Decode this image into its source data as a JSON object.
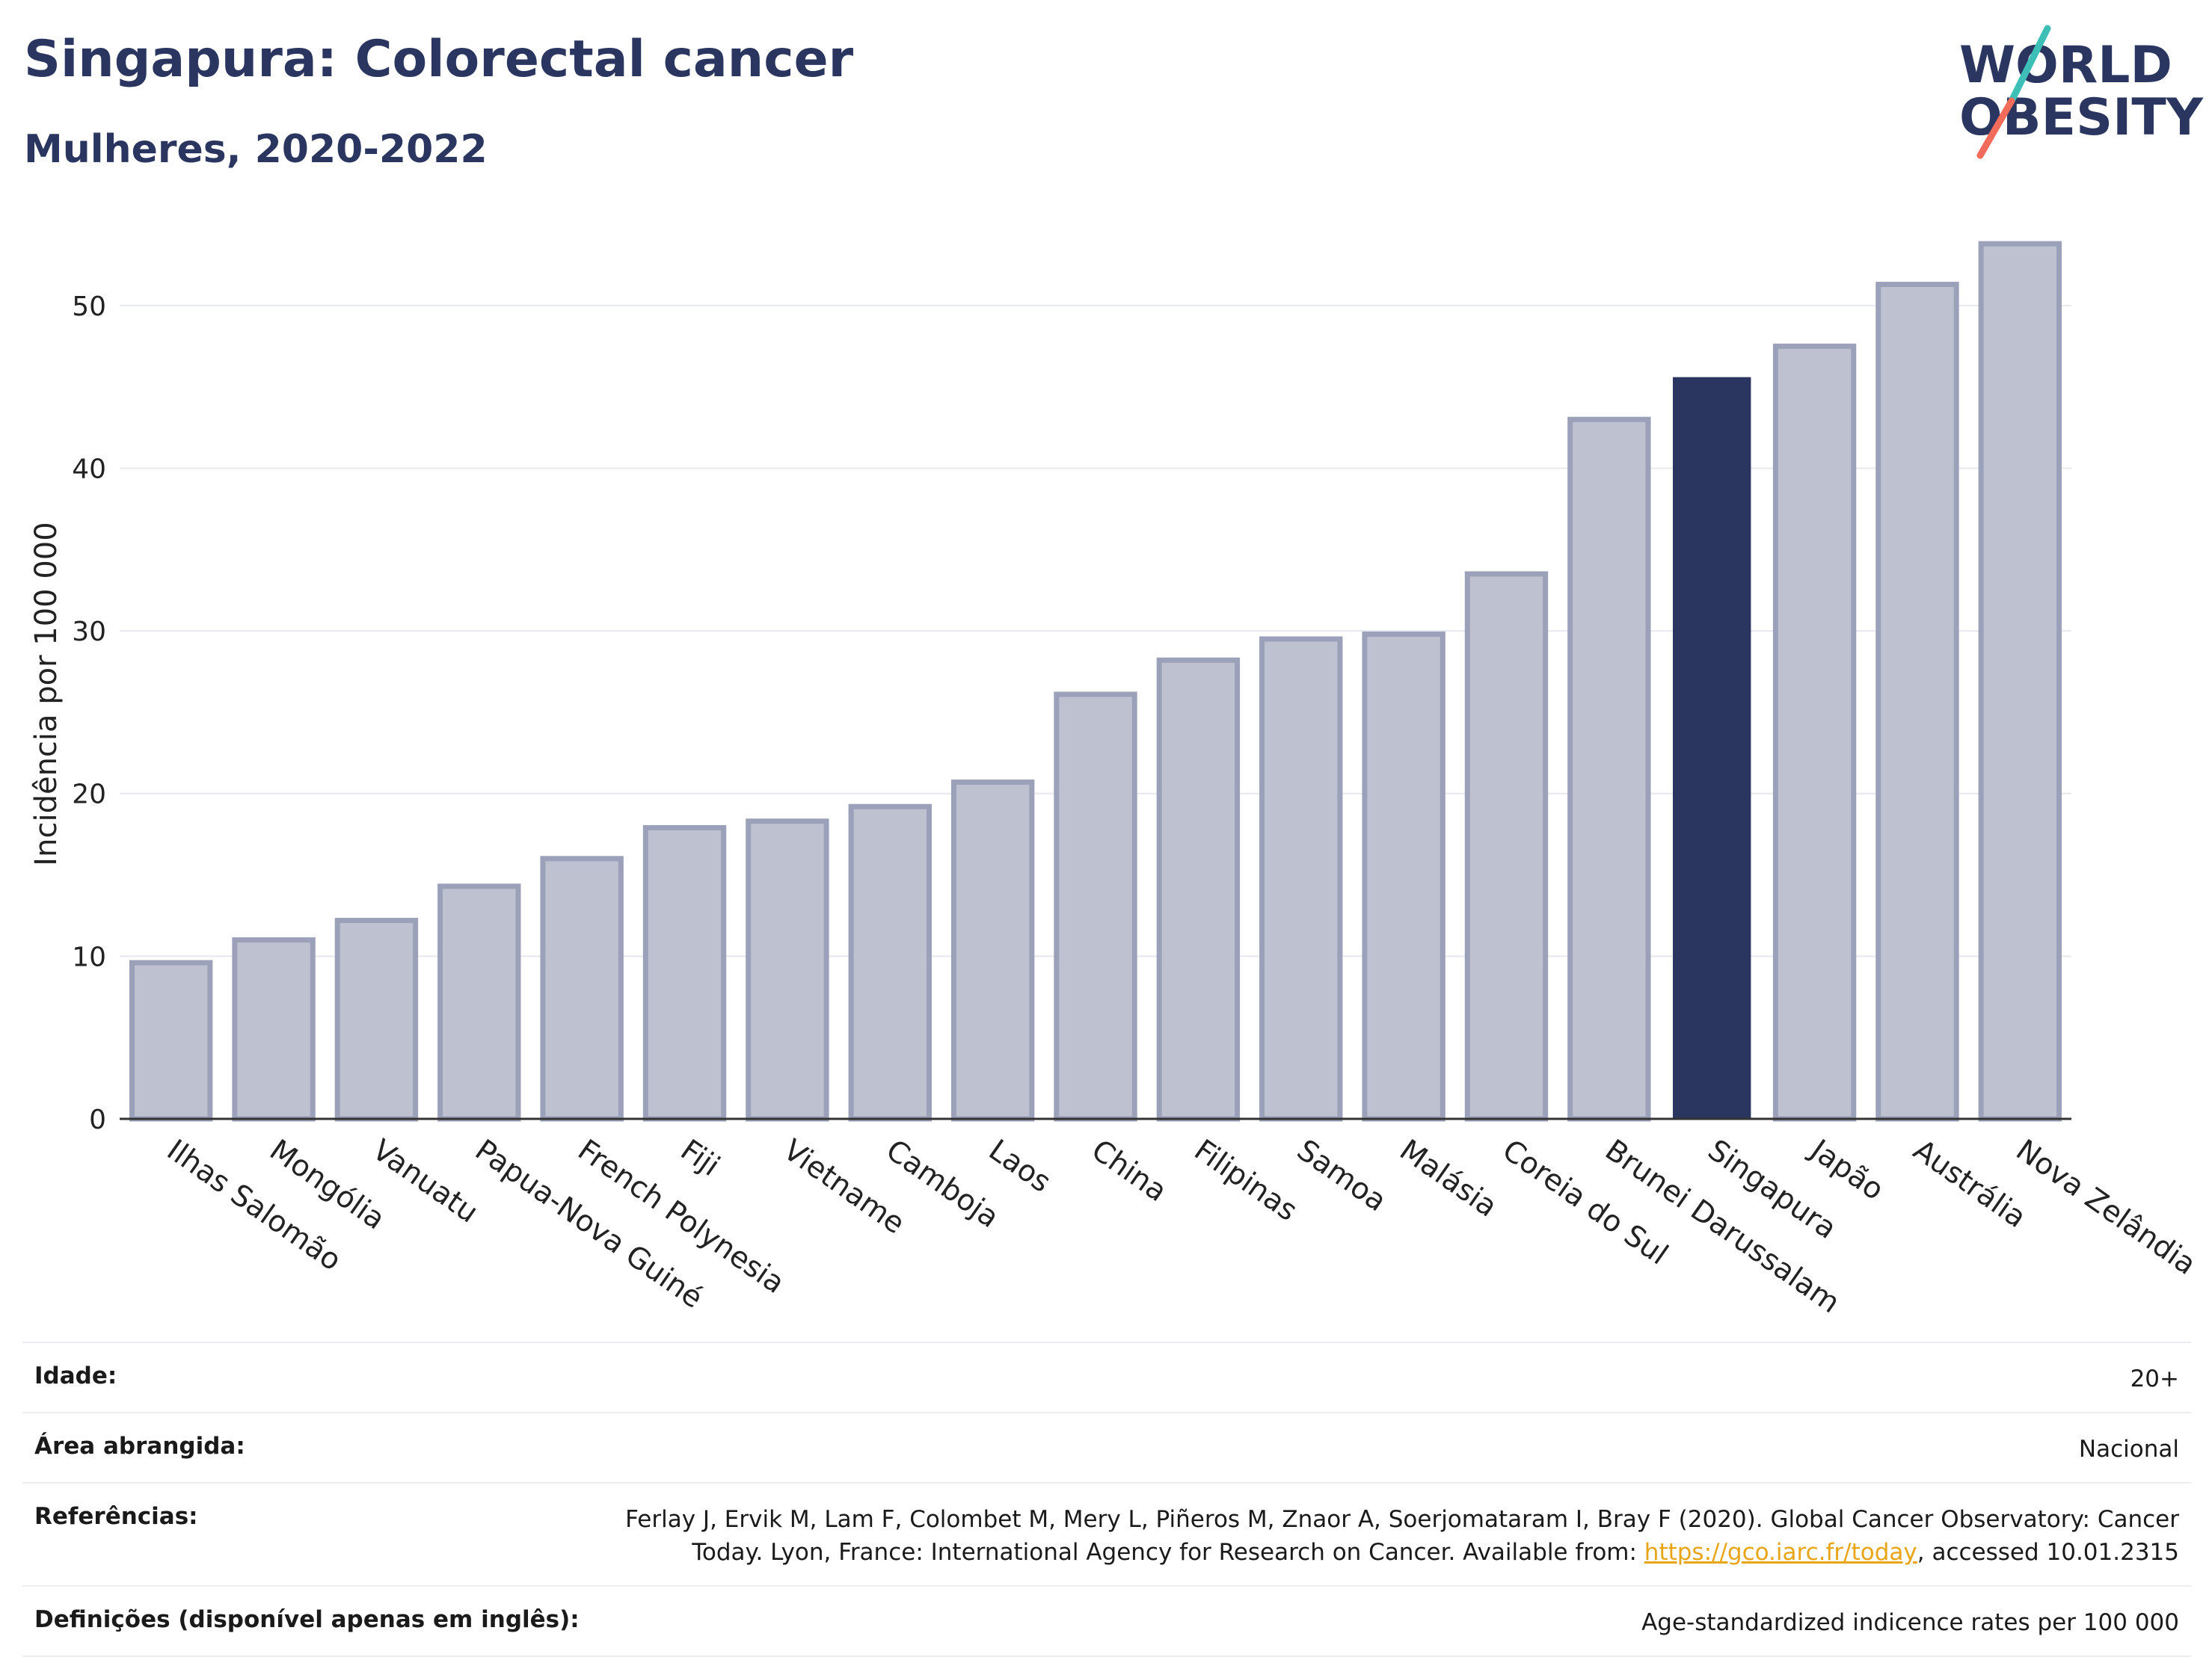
{
  "header": {
    "title": "Singapura: Colorectal cancer",
    "subtitle": "Mulheres, 2020-2022"
  },
  "logo": {
    "line1": "WORLD",
    "line2": "OBESITY",
    "slash_colors": [
      "#3dbfb8",
      "#f26b5b"
    ]
  },
  "chart_data": {
    "type": "bar",
    "categories": [
      "Ilhas Salomão",
      "Mongólia",
      "Vanuatu",
      "Papua-Nova Guiné",
      "French Polynesia",
      "Fiji",
      "Vietname",
      "Camboja",
      "Laos",
      "China",
      "Filipinas",
      "Samoa",
      "Malásia",
      "Coreia do Sul",
      "Brunei Darussalam",
      "Singapura",
      "Japão",
      "Austrália",
      "Nova Zelândia"
    ],
    "values": [
      9.6,
      11.0,
      12.2,
      14.3,
      16.0,
      17.9,
      18.3,
      19.2,
      20.7,
      26.1,
      28.2,
      29.5,
      29.8,
      33.5,
      43.0,
      45.6,
      47.5,
      51.3,
      53.8
    ],
    "highlight": "Singapura",
    "ylabel": "Incidência por 100 000",
    "xlabel": "",
    "ylim": [
      0,
      55
    ],
    "yticks": [
      0,
      10,
      20,
      30,
      40,
      50
    ],
    "grid": true,
    "colors": {
      "bar": "#2a3560",
      "bar_muted": "#bec1d0",
      "bar_muted_border": "#9ba1b9",
      "grid": "#e6e8ee"
    }
  },
  "info": {
    "rows": [
      {
        "label": "Idade:",
        "value": "20+"
      },
      {
        "label": "Área abrangida:",
        "value": "Nacional"
      },
      {
        "label": "Referências:",
        "value_pre": "Ferlay J, Ervik M, Lam F, Colombet M, Mery L, Piñeros M, Znaor A, Soerjomataram I, Bray F (2020). Global Cancer Observatory: Cancer Today. Lyon, France: International Agency for Research on Cancer. Available from: ",
        "link": "https://gco.iarc.fr/today",
        "value_post": ", accessed 10.01.2315"
      },
      {
        "label": "Definições (disponível apenas em inglês):",
        "value": "Age-standardized indicence rates per 100 000"
      }
    ]
  }
}
